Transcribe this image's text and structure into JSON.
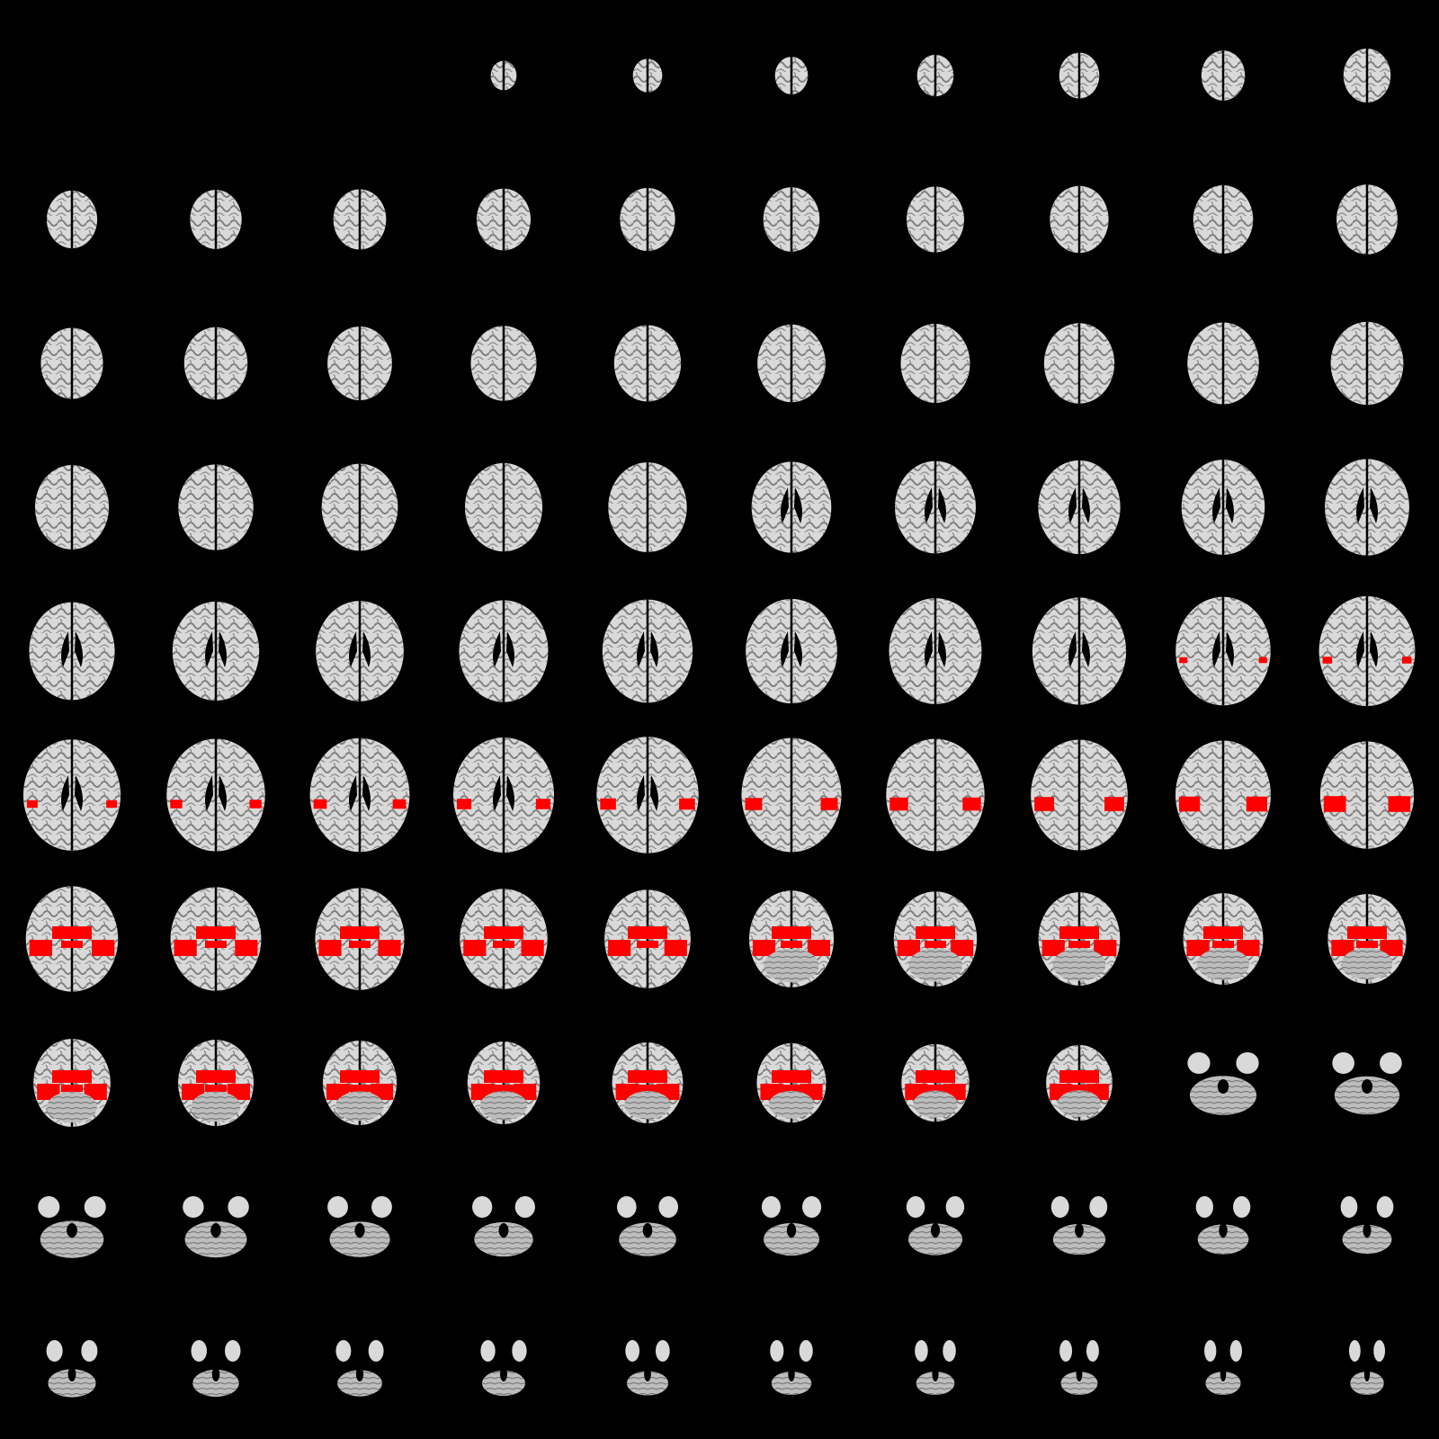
{
  "mosaic": {
    "view": "axial",
    "rows": 10,
    "cols": 10,
    "background_color": "#000000",
    "tissue_color": "#d9d9d9",
    "sulci_color": "#6e6e6e",
    "cerebellum_color": "#bdbdbd",
    "overlay_color": "#ff0000"
  }
}
